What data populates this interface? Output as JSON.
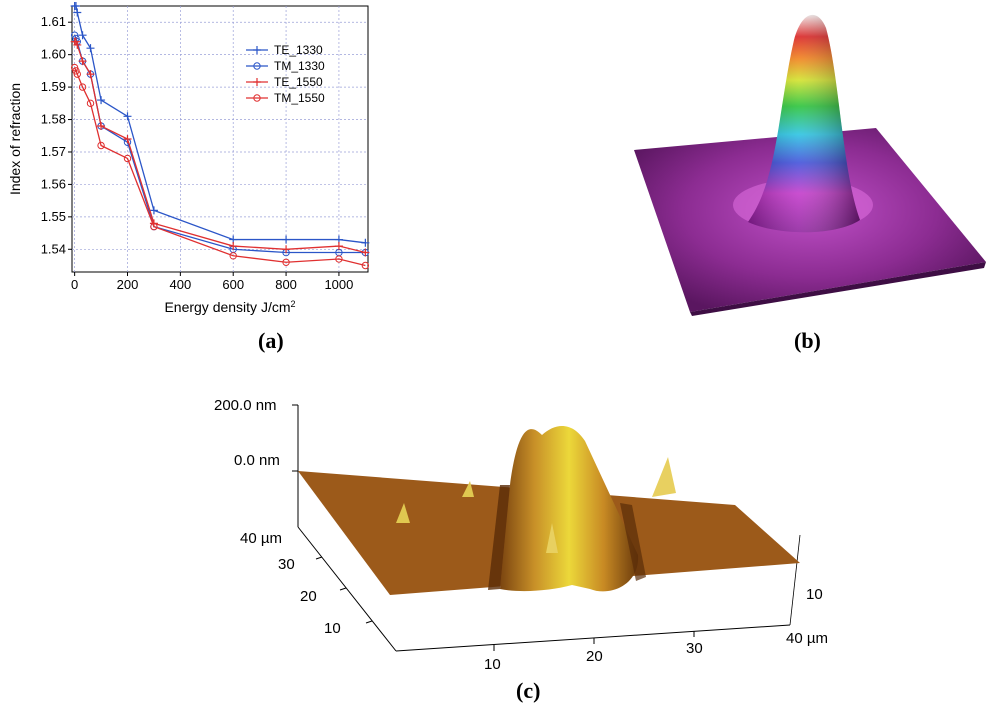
{
  "figure": {
    "captions": {
      "a": "(a)",
      "b": "(b)",
      "c": "(c)"
    }
  },
  "chart_data": {
    "type": "line",
    "xlabel": "Energy density J/cm",
    "xlabel_superscript": "2",
    "ylabel": "Index of refraction",
    "xlim": [
      -10,
      1110
    ],
    "ylim": [
      1.533,
      1.615
    ],
    "xticks": [
      0,
      200,
      400,
      600,
      800,
      1000
    ],
    "yticks": [
      1.54,
      1.55,
      1.56,
      1.57,
      1.58,
      1.59,
      1.6,
      1.61
    ],
    "grid": true,
    "legend_position": "top-right",
    "series": [
      {
        "name": "TE_1330",
        "color": "#2b56c8",
        "marker": "plus",
        "x": [
          0,
          5,
          10,
          30,
          60,
          100,
          200,
          300,
          600,
          800,
          1000,
          1100
        ],
        "y": [
          1.615,
          1.615,
          1.613,
          1.606,
          1.602,
          1.586,
          1.581,
          1.552,
          1.543,
          1.543,
          1.543,
          1.542
        ]
      },
      {
        "name": "TM_1330",
        "color": "#2b56c8",
        "marker": "circle",
        "x": [
          0,
          5,
          10,
          30,
          60,
          100,
          200,
          300,
          600,
          800,
          1000,
          1100
        ],
        "y": [
          1.606,
          1.605,
          1.604,
          1.598,
          1.594,
          1.578,
          1.573,
          1.547,
          1.54,
          1.539,
          1.539,
          1.539
        ]
      },
      {
        "name": "TE_1550",
        "color": "#e03030",
        "marker": "plus",
        "x": [
          0,
          5,
          10,
          30,
          60,
          100,
          200,
          300,
          600,
          800,
          1000,
          1100
        ],
        "y": [
          1.604,
          1.604,
          1.603,
          1.598,
          1.594,
          1.578,
          1.574,
          1.548,
          1.541,
          1.54,
          1.541,
          1.539
        ]
      },
      {
        "name": "TM_1550",
        "color": "#e03030",
        "marker": "circle",
        "x": [
          0,
          5,
          10,
          30,
          60,
          100,
          200,
          300,
          600,
          800,
          1000,
          1100
        ],
        "y": [
          1.596,
          1.595,
          1.594,
          1.59,
          1.585,
          1.572,
          1.568,
          1.547,
          1.538,
          1.536,
          1.537,
          1.535
        ]
      }
    ]
  },
  "afm": {
    "z_top_label": "200.0 nm",
    "z_zero_label": "0.0 nm",
    "y_axis_labels": [
      "40 µm",
      "30",
      "20",
      "10"
    ],
    "x_axis_labels": [
      "10",
      "20",
      "30",
      "40 µm"
    ],
    "right_axis_labels": [
      "10"
    ],
    "colors": {
      "surface": "#a0601c",
      "peak": "#e8d030"
    }
  }
}
